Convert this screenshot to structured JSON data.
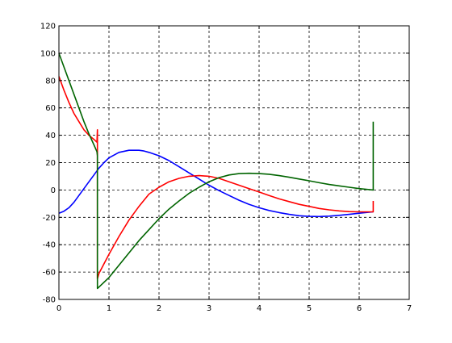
{
  "chart_data": {
    "type": "line",
    "xlim": [
      0,
      7
    ],
    "ylim": [
      -80,
      120
    ],
    "x_ticks": [
      0,
      1,
      2,
      3,
      4,
      5,
      6,
      7
    ],
    "y_ticks": [
      -80,
      -60,
      -40,
      -20,
      0,
      20,
      40,
      60,
      80,
      100,
      120
    ],
    "x_tick_labels": [
      "0",
      "1",
      "2",
      "3",
      "4",
      "5",
      "6",
      "7"
    ],
    "y_tick_labels": [
      "-80",
      "-60",
      "-40",
      "-20",
      "0",
      "20",
      "40",
      "60",
      "80",
      "100",
      "120"
    ],
    "grid": true,
    "grid_style": "dashed",
    "title": "",
    "xlabel": "",
    "ylabel": "",
    "series": [
      {
        "color": "#0000ff",
        "x": [
          0.0,
          0.1,
          0.2,
          0.3,
          0.4,
          0.5,
          0.6,
          0.7,
          0.8,
          0.9,
          1.0,
          1.2,
          1.4,
          1.6,
          1.7,
          1.8,
          2.0,
          2.2,
          2.4,
          2.6,
          2.8,
          3.0,
          3.2,
          3.4,
          3.6,
          3.8,
          4.0,
          4.2,
          4.4,
          4.6,
          4.8,
          5.0,
          5.2,
          5.4,
          5.6,
          5.8,
          6.0,
          6.28
        ],
        "y": [
          -17,
          -15.5,
          -13,
          -9,
          -4,
          1,
          6,
          11,
          16,
          20,
          23.5,
          27.5,
          29,
          29,
          28.5,
          27.5,
          25,
          21.5,
          17,
          12.5,
          8,
          3.5,
          -0.5,
          -4,
          -7.5,
          -10.5,
          -13,
          -15,
          -16.5,
          -17.8,
          -18.8,
          -19.3,
          -19.4,
          -19.1,
          -18.5,
          -17.8,
          -17,
          -16
        ]
      },
      {
        "color": "#ff0000",
        "x": [
          0.0,
          0.1,
          0.2,
          0.3,
          0.4,
          0.5,
          0.6,
          0.7,
          0.76,
          0.77,
          0.77,
          0.77,
          0.8,
          1.0,
          1.2,
          1.4,
          1.6,
          1.8,
          2.0,
          2.2,
          2.4,
          2.6,
          2.8,
          3.0,
          3.2,
          3.4,
          3.6,
          3.8,
          4.0,
          4.2,
          4.4,
          4.6,
          4.8,
          5.0,
          5.2,
          5.4,
          5.6,
          5.8,
          6.0,
          6.2,
          6.28,
          6.28
        ],
        "y": [
          83,
          73,
          64,
          56,
          50,
          44,
          40,
          37,
          35,
          44,
          44,
          -65,
          -61,
          -47,
          -34,
          -22,
          -12,
          -3,
          2,
          6,
          8.5,
          10,
          10.5,
          10,
          8.5,
          6,
          3.5,
          1,
          -1.5,
          -4,
          -6.5,
          -8.5,
          -10.5,
          -12,
          -13.5,
          -14.5,
          -15.3,
          -15.8,
          -16,
          -16,
          -16,
          -8
        ]
      },
      {
        "color": "#006400",
        "x": [
          0.0,
          0.1,
          0.2,
          0.3,
          0.4,
          0.5,
          0.6,
          0.7,
          0.76,
          0.77,
          0.77,
          0.8,
          1.0,
          1.2,
          1.4,
          1.6,
          1.8,
          2.0,
          2.2,
          2.4,
          2.6,
          2.8,
          3.0,
          3.2,
          3.4,
          3.6,
          3.8,
          4.0,
          4.2,
          4.4,
          4.6,
          4.8,
          5.0,
          5.2,
          5.4,
          5.6,
          5.8,
          6.0,
          6.2,
          6.28,
          6.28
        ],
        "y": [
          100,
          90,
          80,
          70,
          60,
          50,
          41,
          33,
          28,
          25,
          -72,
          -71,
          -64,
          -55,
          -46,
          -37,
          -29,
          -21,
          -14,
          -8,
          -2.5,
          2,
          6,
          9,
          11,
          12,
          12.2,
          12,
          11.5,
          10.5,
          9.3,
          8,
          6.7,
          5.3,
          4,
          3,
          2,
          1,
          0.3,
          0,
          50
        ]
      }
    ]
  }
}
